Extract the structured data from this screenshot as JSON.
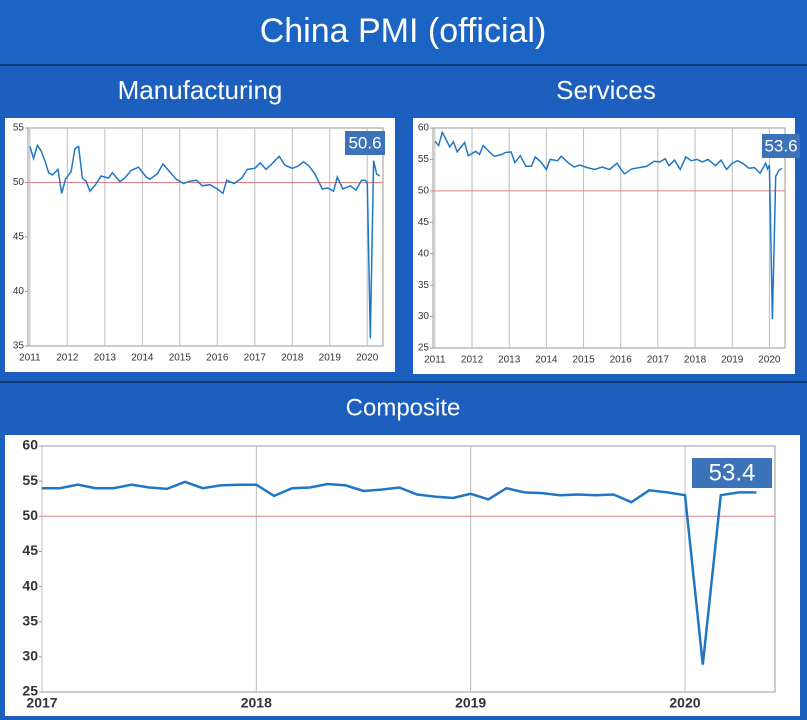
{
  "title": "China PMI (official)",
  "chart_data": [
    {
      "type": "line",
      "title": "Manufacturing",
      "color": "#1f77c4",
      "x": [
        2011.0,
        2011.1,
        2011.2,
        2011.3,
        2011.4,
        2011.5,
        2011.6,
        2011.75,
        2011.85,
        2011.95,
        2012.1,
        2012.2,
        2012.3,
        2012.4,
        2012.5,
        2012.6,
        2012.75,
        2012.9,
        2013.1,
        2013.2,
        2013.4,
        2013.5,
        2013.7,
        2013.9,
        2014.1,
        2014.2,
        2014.4,
        2014.55,
        2014.7,
        2014.9,
        2015.1,
        2015.25,
        2015.45,
        2015.6,
        2015.8,
        2016.0,
        2016.15,
        2016.25,
        2016.45,
        2016.65,
        2016.8,
        2017.0,
        2017.15,
        2017.3,
        2017.45,
        2017.65,
        2017.8,
        2018.0,
        2018.15,
        2018.3,
        2018.45,
        2018.6,
        2018.8,
        2018.95,
        2019.1,
        2019.2,
        2019.35,
        2019.55,
        2019.7,
        2019.85,
        2019.95,
        2020.0,
        2020.08,
        2020.17,
        2020.25,
        2020.33
      ],
      "values": [
        53.3,
        52.2,
        53.4,
        52.9,
        52.0,
        50.9,
        50.7,
        51.2,
        49.0,
        50.3,
        51.0,
        53.1,
        53.3,
        50.4,
        50.1,
        49.2,
        49.8,
        50.6,
        50.4,
        50.9,
        50.1,
        50.3,
        51.1,
        51.4,
        50.5,
        50.3,
        50.8,
        51.7,
        51.1,
        50.3,
        49.9,
        50.1,
        50.2,
        49.7,
        49.8,
        49.4,
        49.0,
        50.2,
        49.9,
        50.4,
        51.2,
        51.3,
        51.8,
        51.2,
        51.7,
        52.4,
        51.6,
        51.3,
        51.5,
        51.9,
        51.5,
        50.8,
        49.4,
        49.5,
        49.2,
        50.5,
        49.4,
        49.7,
        49.3,
        50.2,
        50.2,
        50.0,
        35.7,
        52.0,
        50.8,
        50.6
      ],
      "xlim": [
        2010.95,
        2020.42
      ],
      "xticks": [
        2011,
        2012,
        2013,
        2014,
        2015,
        2016,
        2017,
        2018,
        2019,
        2020
      ],
      "ylim": [
        35,
        55
      ],
      "yticks": [
        35,
        40,
        45,
        50,
        55
      ],
      "hline": 50,
      "annotation": "50.6"
    },
    {
      "type": "line",
      "title": "Services",
      "color": "#1f77c4",
      "x": [
        2011.0,
        2011.1,
        2011.2,
        2011.3,
        2011.4,
        2011.5,
        2011.6,
        2011.8,
        2011.9,
        2012.1,
        2012.2,
        2012.3,
        2012.5,
        2012.6,
        2012.8,
        2012.9,
        2013.05,
        2013.15,
        2013.3,
        2013.45,
        2013.6,
        2013.7,
        2013.85,
        2014.0,
        2014.1,
        2014.3,
        2014.4,
        2014.6,
        2014.75,
        2014.9,
        2015.1,
        2015.3,
        2015.5,
        2015.7,
        2015.9,
        2016.0,
        2016.1,
        2016.3,
        2016.5,
        2016.7,
        2016.9,
        2017.05,
        2017.2,
        2017.3,
        2017.45,
        2017.6,
        2017.75,
        2017.9,
        2018.05,
        2018.2,
        2018.35,
        2018.55,
        2018.7,
        2018.85,
        2019.0,
        2019.15,
        2019.3,
        2019.45,
        2019.6,
        2019.75,
        2019.9,
        2019.95,
        2020.0,
        2020.08,
        2020.17,
        2020.25,
        2020.33
      ],
      "values": [
        57.9,
        57.2,
        59.3,
        58.2,
        57.0,
        57.8,
        56.2,
        57.7,
        55.6,
        56.3,
        55.8,
        57.2,
        56.0,
        55.5,
        55.8,
        56.1,
        56.2,
        54.5,
        55.6,
        53.9,
        53.9,
        55.4,
        54.6,
        53.4,
        55.0,
        54.8,
        55.5,
        54.4,
        53.8,
        54.1,
        53.7,
        53.4,
        53.8,
        53.4,
        54.4,
        53.5,
        52.7,
        53.5,
        53.7,
        53.9,
        54.7,
        54.6,
        55.1,
        54.0,
        54.9,
        53.4,
        55.4,
        54.8,
        55.0,
        54.6,
        55.0,
        54.0,
        54.9,
        53.4,
        54.4,
        54.8,
        54.3,
        53.6,
        53.7,
        52.8,
        54.4,
        53.5,
        54.1,
        29.6,
        52.3,
        53.2,
        53.6
      ],
      "xlim": [
        2010.95,
        2020.42
      ],
      "xticks": [
        2011,
        2012,
        2013,
        2014,
        2015,
        2016,
        2017,
        2018,
        2019,
        2020
      ],
      "ylim": [
        25,
        60
      ],
      "yticks": [
        25,
        30,
        35,
        40,
        45,
        50,
        55,
        60
      ],
      "hline": 50,
      "annotation": "53.6"
    },
    {
      "type": "line",
      "title": "Composite",
      "color": "#1f77c4",
      "x": [
        2017.0,
        2017.083,
        2017.167,
        2017.25,
        2017.333,
        2017.417,
        2017.5,
        2017.583,
        2017.667,
        2017.75,
        2017.833,
        2017.917,
        2018.0,
        2018.083,
        2018.167,
        2018.25,
        2018.333,
        2018.417,
        2018.5,
        2018.583,
        2018.667,
        2018.75,
        2018.833,
        2018.917,
        2019.0,
        2019.083,
        2019.167,
        2019.25,
        2019.333,
        2019.417,
        2019.5,
        2019.583,
        2019.667,
        2019.75,
        2019.833,
        2019.917,
        2020.0,
        2020.083,
        2020.167,
        2020.25,
        2020.333
      ],
      "values": [
        54.0,
        54.0,
        54.5,
        54.0,
        54.0,
        54.5,
        54.1,
        53.9,
        54.9,
        54.0,
        54.4,
        54.5,
        54.5,
        52.9,
        54.0,
        54.1,
        54.6,
        54.4,
        53.6,
        53.8,
        54.1,
        53.1,
        52.8,
        52.6,
        53.2,
        52.4,
        54.0,
        53.4,
        53.3,
        53.0,
        53.1,
        53.0,
        53.1,
        52.0,
        53.7,
        53.4,
        53.0,
        28.9,
        53.0,
        53.4,
        53.4
      ],
      "xlim": [
        2017.0,
        2020.42
      ],
      "xticks": [
        2017,
        2018,
        2019,
        2020
      ],
      "ylim": [
        25,
        60
      ],
      "yticks": [
        25,
        30,
        35,
        40,
        45,
        50,
        55,
        60
      ],
      "hline": 50,
      "annotation": "53.4"
    }
  ]
}
